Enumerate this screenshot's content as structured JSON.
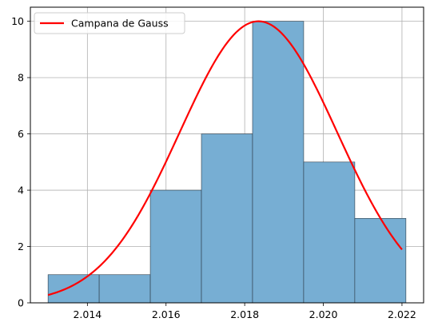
{
  "chart_data": {
    "type": "bar",
    "bins": [
      {
        "x0": 2.013,
        "x1": 2.0143,
        "value": 1
      },
      {
        "x0": 2.0143,
        "x1": 2.0156,
        "value": 1
      },
      {
        "x0": 2.0156,
        "x1": 2.0169,
        "value": 4
      },
      {
        "x0": 2.0169,
        "x1": 2.0182,
        "value": 6
      },
      {
        "x0": 2.0182,
        "x1": 2.0195,
        "value": 10
      },
      {
        "x0": 2.0195,
        "x1": 2.0208,
        "value": 5
      },
      {
        "x0": 2.0208,
        "x1": 2.0221,
        "value": 3
      }
    ],
    "curve": {
      "name": "Campana de Gauss",
      "color": "#ff0000",
      "mean": 2.01835,
      "std": 0.002,
      "peak": 10,
      "x_start": 2.013,
      "x_end": 2.022
    },
    "xlim": [
      2.01255,
      2.02255
    ],
    "ylim": [
      0,
      10.5
    ],
    "x_ticks": [
      "2.014",
      "2.016",
      "2.018",
      "2.020",
      "2.022"
    ],
    "x_tick_values": [
      2.014,
      2.016,
      2.018,
      2.02,
      2.022
    ],
    "y_ticks": [
      "0",
      "2",
      "4",
      "6",
      "8",
      "10"
    ],
    "y_tick_values": [
      0,
      2,
      4,
      6,
      8,
      10
    ],
    "bar_color": "#77aed3",
    "bar_edge_color": "#2b3a46",
    "grid": true,
    "legend_position": "top-left",
    "title": "",
    "xlabel": "",
    "ylabel": ""
  }
}
